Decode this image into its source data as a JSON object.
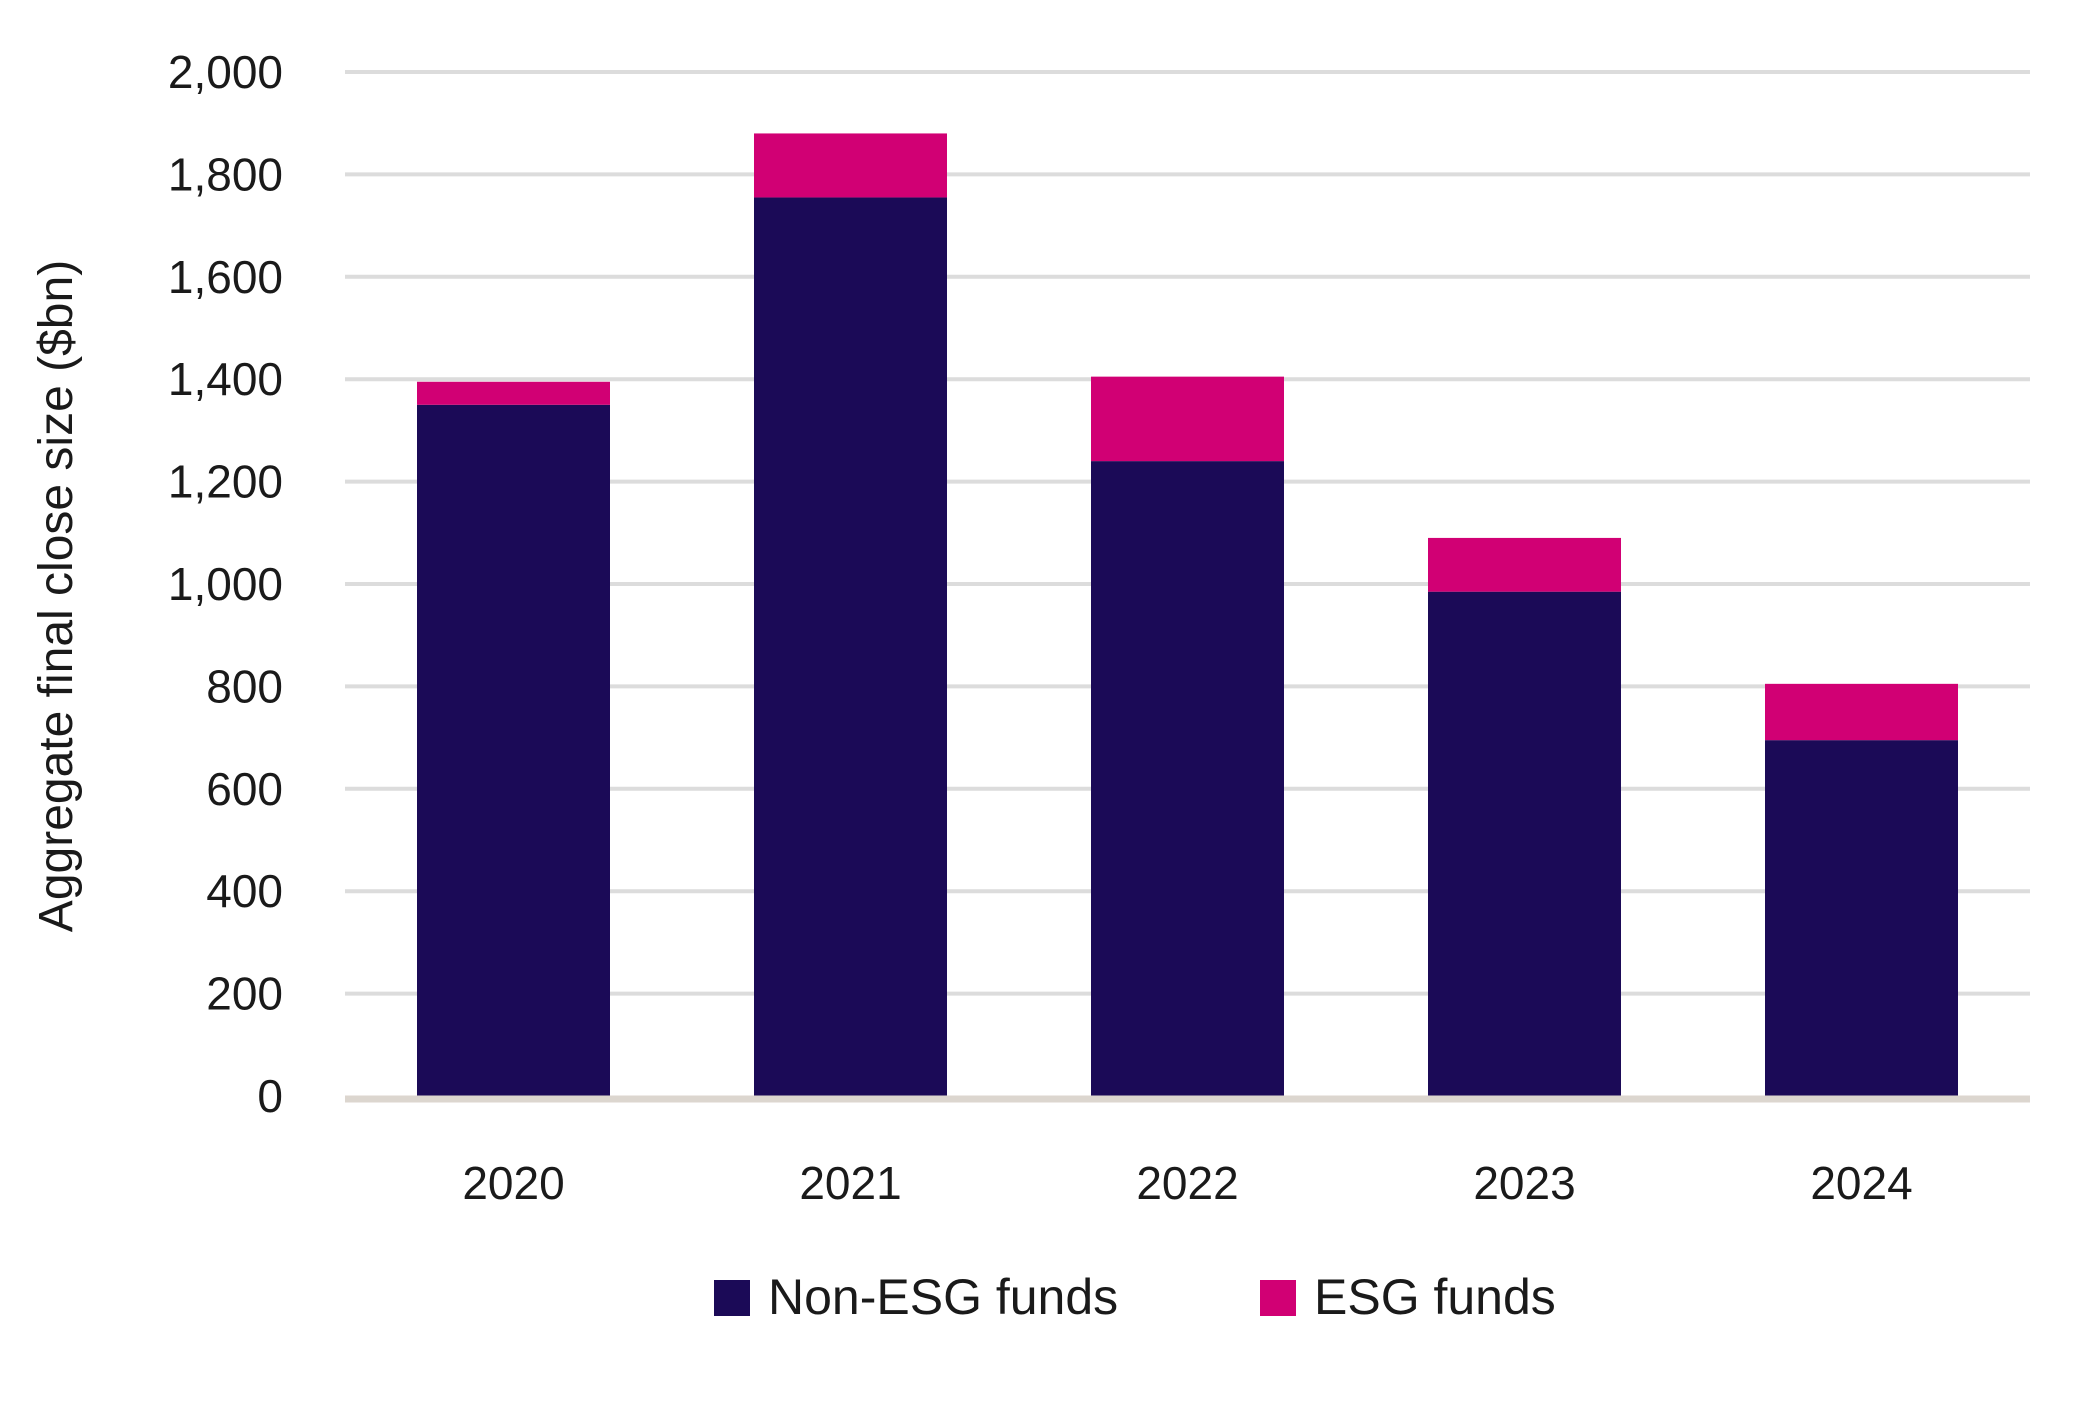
{
  "chart_data": {
    "type": "bar",
    "stacked": true,
    "title": "",
    "xlabel": "",
    "ylabel": "Aggregate final close size ($bn)",
    "categories": [
      "2020",
      "2021",
      "2022",
      "2023",
      "2024"
    ],
    "series": [
      {
        "name": "Non-ESG funds",
        "color": "#1b0a57",
        "values": [
          1350,
          1755,
          1240,
          985,
          695
        ]
      },
      {
        "name": "ESG funds",
        "color": "#d10074",
        "values": [
          45,
          125,
          165,
          105,
          110
        ]
      }
    ],
    "ylim": [
      0,
      2000
    ],
    "yticks": [
      0,
      200,
      400,
      600,
      800,
      1000,
      1200,
      1400,
      1600,
      1800,
      2000
    ],
    "ytick_labels": [
      "0",
      "200",
      "400",
      "600",
      "800",
      "1,000",
      "1,200",
      "1,400",
      "1,600",
      "1,800",
      "2,000"
    ],
    "grid": true,
    "gridline_color": "#dcdcdc",
    "baseline_color": "#dcd6cf",
    "legend_position": "bottom"
  }
}
